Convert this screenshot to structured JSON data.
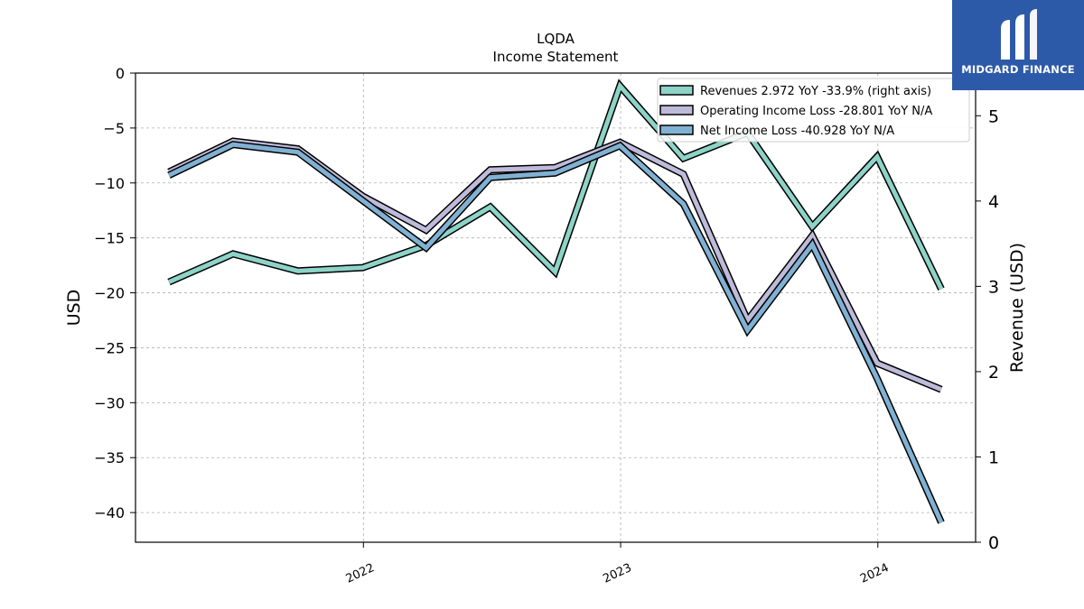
{
  "brand": {
    "name": "MIDGARD FINANCE",
    "color": "#2d5aa8"
  },
  "chart_data": {
    "type": "line",
    "title": "LQDA",
    "subtitle": "Income Statement",
    "ylabel": "USD",
    "ylabel_right": "Revenue (USD)",
    "ylim": [
      -42.7,
      0
    ],
    "ylim_right": [
      0,
      5.5
    ],
    "yticks": [
      0,
      -5,
      -10,
      -15,
      -20,
      -25,
      -30,
      -35,
      -40
    ],
    "yticks_right": [
      0,
      1,
      2,
      3,
      4,
      5
    ],
    "xtick_labels": [
      "2022",
      "2023",
      "2024"
    ],
    "xtick_dates": [
      "2022-01-01",
      "2023-01-01",
      "2024-01-01"
    ],
    "grid": true,
    "legend_position": "top-right",
    "x": [
      "2021-03-31",
      "2021-06-30",
      "2021-09-30",
      "2021-12-31",
      "2022-03-31",
      "2022-06-30",
      "2022-09-30",
      "2022-12-31",
      "2023-03-31",
      "2023-06-30",
      "2023-09-30",
      "2023-12-31",
      "2024-03-31"
    ],
    "series": [
      {
        "name": "Revenues",
        "legend": "Revenues  2.972 YoY -33.9% (right axis)",
        "axis": "right",
        "color": "#8dd3c7",
        "values": [
          3.05,
          3.38,
          3.18,
          3.22,
          3.48,
          3.93,
          3.17,
          5.35,
          4.5,
          4.8,
          3.7,
          4.52,
          2.97
        ]
      },
      {
        "name": "Operating Income Loss",
        "legend": "Operating Income Loss  -28.801 YoY N/A",
        "axis": "left",
        "color": "#bebada",
        "values": [
          -9.0,
          -6.2,
          -6.9,
          -11.2,
          -14.3,
          -8.8,
          -8.6,
          -6.3,
          -9.2,
          -22.5,
          -14.8,
          -26.4,
          -28.8
        ]
      },
      {
        "name": "Net Income Loss",
        "legend": "Net Income Loss  -40.928 YoY N/A",
        "axis": "left",
        "color": "#80b1d3",
        "values": [
          -9.3,
          -6.5,
          -7.2,
          -11.6,
          -15.9,
          -9.5,
          -9.1,
          -6.6,
          -11.9,
          -23.4,
          -15.6,
          -27.8,
          -40.9
        ]
      }
    ]
  }
}
